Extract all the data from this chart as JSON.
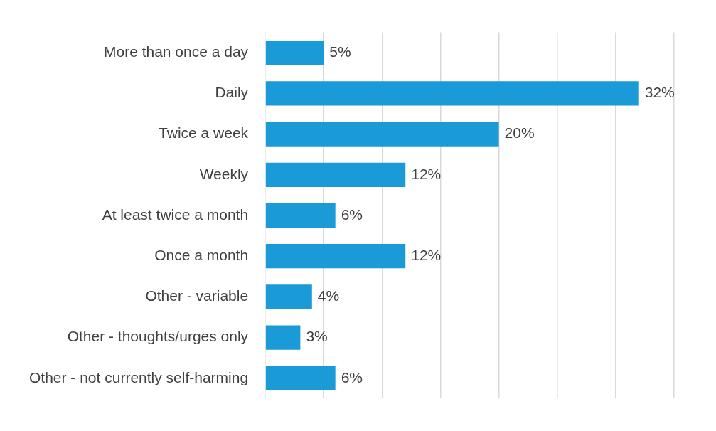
{
  "chart_data": {
    "type": "bar",
    "orientation": "horizontal",
    "categories": [
      "More than once a day",
      "Daily",
      "Twice a week",
      "Weekly",
      "At least twice a month",
      "Once a month",
      "Other - variable",
      "Other - thoughts/urges only",
      "Other - not currently self-harming"
    ],
    "values": [
      5,
      32,
      20,
      12,
      6,
      12,
      4,
      3,
      6
    ],
    "value_labels": [
      "5%",
      "32%",
      "20%",
      "12%",
      "6%",
      "12%",
      "4%",
      "3%",
      "6%"
    ],
    "color": "#1a9ad6",
    "xlim": [
      0,
      35
    ],
    "xticks": [
      {
        "value": 0,
        "label": null
      },
      {
        "value": 5,
        "label": null
      },
      {
        "value": 10,
        "label": null
      },
      {
        "value": 15,
        "label": null
      },
      {
        "value": 20,
        "label": null
      },
      {
        "value": 25,
        "label": null
      },
      {
        "value": 30,
        "label": null
      },
      {
        "value": 35,
        "label": null
      }
    ],
    "tick_labels": "y",
    "grid": "x",
    "legend": false
  }
}
